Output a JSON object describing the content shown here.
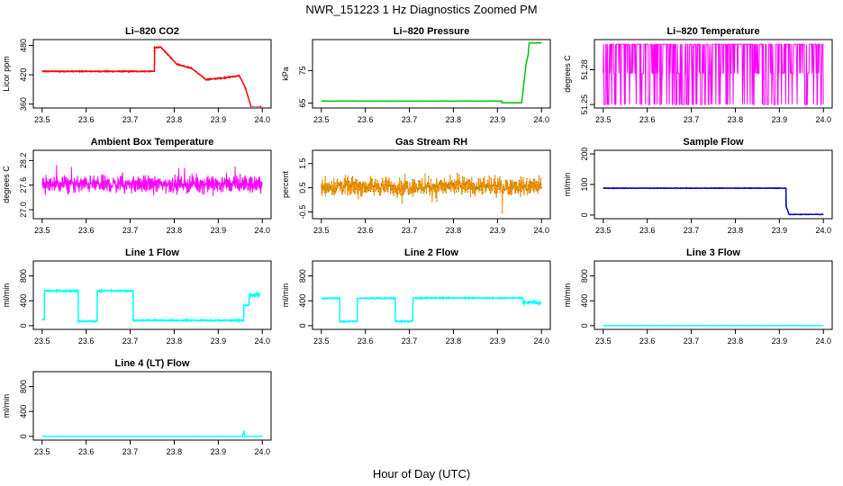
{
  "figure": {
    "title": "NWR_151223  1 Hz Diagnostics Zoomed PM",
    "xlabel": "Hour of Day (UTC)"
  },
  "chart_data": [
    {
      "type": "line",
      "title": "Li–820 CO2",
      "xlabel": "",
      "ylabel": "Licor ppm",
      "x_ticks": [
        "23.5",
        "23.6",
        "23.7",
        "23.8",
        "23.9",
        "24.0"
      ],
      "y_ticks": [
        "360",
        "420",
        "480"
      ],
      "xlim": [
        23.48,
        24.02
      ],
      "ylim": [
        352,
        492
      ],
      "color": "#ff0000",
      "kind": "step",
      "x": [
        23.5,
        23.755,
        23.755,
        23.77,
        23.77,
        23.806,
        23.806,
        23.84,
        23.84,
        23.872,
        23.872,
        23.915,
        23.915,
        23.948,
        23.948,
        23.962,
        23.975,
        24.0
      ],
      "y": [
        427,
        427,
        476,
        476,
        476,
        442,
        442,
        433,
        433,
        410,
        410,
        414,
        414,
        418,
        418,
        392,
        353,
        353
      ],
      "noise": 1.2
    },
    {
      "type": "line",
      "title": "Li–820 Pressure",
      "xlabel": "",
      "ylabel": "kPa",
      "x_ticks": [
        "23.5",
        "23.6",
        "23.7",
        "23.8",
        "23.9",
        "24.0"
      ],
      "y_ticks": [
        "65",
        "75"
      ],
      "xlim": [
        23.48,
        24.02
      ],
      "ylim": [
        63.5,
        84.5
      ],
      "color": "#00c000",
      "kind": "step",
      "x": [
        23.5,
        23.91,
        23.91,
        23.955,
        23.965,
        23.97,
        23.972,
        24.0
      ],
      "y": [
        65.6,
        65.6,
        65.1,
        65.1,
        77,
        80,
        83.5,
        83.5
      ],
      "noise": 0.05
    },
    {
      "type": "line",
      "title": "Li–820 Temperature",
      "xlabel": "",
      "ylabel": "degrees C",
      "x_ticks": [
        "23.5",
        "23.6",
        "23.7",
        "23.8",
        "23.9",
        "24.0"
      ],
      "y_ticks": [
        "51.25",
        "51.28"
      ],
      "xlim": [
        23.48,
        24.02
      ],
      "ylim": [
        51.247,
        51.306
      ],
      "color": "#ff00ff",
      "kind": "discrete",
      "levels": [
        51.25,
        51.277,
        51.302
      ],
      "x": [
        23.5,
        24.0
      ]
    },
    {
      "type": "line",
      "title": "Ambient Box Temperature",
      "xlabel": "",
      "ylabel": "degrees C",
      "x_ticks": [
        "23.5",
        "23.6",
        "23.7",
        "23.8",
        "23.9",
        "24.0"
      ],
      "y_ticks": [
        "27.0",
        "27.6",
        "28.2"
      ],
      "xlim": [
        23.48,
        24.02
      ],
      "ylim": [
        26.78,
        28.45
      ],
      "color": "#ff00ff",
      "kind": "noise",
      "x": [
        23.5,
        24.0
      ],
      "y_center": 27.62,
      "y_spread": 0.3
    },
    {
      "type": "scatter",
      "title": "Gas Stream RH",
      "xlabel": "",
      "ylabel": "percent",
      "x_ticks": [
        "23.5",
        "23.6",
        "23.7",
        "23.8",
        "23.9",
        "24.0"
      ],
      "y_ticks": [
        "-0.5",
        "0.5",
        "1.5"
      ],
      "xlim": [
        23.48,
        24.02
      ],
      "ylim": [
        -0.78,
        2.05
      ],
      "color": "#ff8c00",
      "color2": "#8b8b00",
      "kind": "noise",
      "x": [
        23.5,
        24.0
      ],
      "y_center": 0.55,
      "y_spread": 0.55
    },
    {
      "type": "line",
      "title": "Sample Flow",
      "xlabel": "",
      "ylabel": "ml/min",
      "x_ticks": [
        "23.5",
        "23.6",
        "23.7",
        "23.8",
        "23.9",
        "24.0"
      ],
      "y_ticks": [
        "0",
        "100",
        "200"
      ],
      "xlim": [
        23.48,
        24.02
      ],
      "ylim": [
        -12,
        212
      ],
      "color": "#0000c0",
      "kind": "step",
      "x": [
        23.5,
        23.915,
        23.915,
        23.922,
        24.0
      ],
      "y": [
        88,
        88,
        30,
        2,
        2
      ],
      "noise": 1.0
    },
    {
      "type": "line",
      "title": "Line 1 Flow",
      "xlabel": "",
      "ylabel": "ml/min",
      "x_ticks": [
        "23.5",
        "23.6",
        "23.7",
        "23.8",
        "23.9",
        "24.0"
      ],
      "y_ticks": [
        "0",
        "400",
        "800"
      ],
      "xlim": [
        23.48,
        24.02
      ],
      "ylim": [
        -60,
        1040
      ],
      "color": "#00ffff",
      "kind": "step",
      "x": [
        23.5,
        23.505,
        23.505,
        23.582,
        23.582,
        23.625,
        23.625,
        23.707,
        23.707,
        23.958,
        23.958,
        23.97,
        23.97,
        23.995
      ],
      "y": [
        100,
        100,
        560,
        560,
        70,
        70,
        560,
        560,
        85,
        85,
        330,
        330,
        490,
        490
      ],
      "noise": 12,
      "heavy_noise_from": 23.97
    },
    {
      "type": "line",
      "title": "Line 2 Flow",
      "xlabel": "",
      "ylabel": "ml/min",
      "x_ticks": [
        "23.5",
        "23.6",
        "23.7",
        "23.8",
        "23.9",
        "24.0"
      ],
      "y_ticks": [
        "0",
        "400",
        "800"
      ],
      "xlim": [
        23.48,
        24.02
      ],
      "ylim": [
        -60,
        1040
      ],
      "color": "#00ffff",
      "kind": "step",
      "x": [
        23.5,
        23.542,
        23.542,
        23.582,
        23.582,
        23.668,
        23.668,
        23.708,
        23.708,
        23.958,
        23.958,
        23.998
      ],
      "y": [
        440,
        440,
        70,
        70,
        440,
        440,
        70,
        70,
        445,
        445,
        370,
        370
      ],
      "noise": 10,
      "heavy_noise_from": 23.958
    },
    {
      "type": "line",
      "title": "Line 3 Flow",
      "xlabel": "",
      "ylabel": "ml/min",
      "x_ticks": [
        "23.5",
        "23.6",
        "23.7",
        "23.8",
        "23.9",
        "24.0"
      ],
      "y_ticks": [
        "0",
        "400",
        "800"
      ],
      "xlim": [
        23.48,
        24.02
      ],
      "ylim": [
        -60,
        1040
      ],
      "color": "#00ffff",
      "kind": "step",
      "x": [
        23.5,
        24.0
      ],
      "y": [
        0,
        0
      ],
      "noise": 2
    },
    {
      "type": "line",
      "title": "Line 4 (LT) Flow",
      "xlabel": "",
      "ylabel": "ml/min",
      "x_ticks": [
        "23.5",
        "23.6",
        "23.7",
        "23.8",
        "23.9",
        "24.0"
      ],
      "y_ticks": [
        "0",
        "400",
        "800"
      ],
      "xlim": [
        23.48,
        24.02
      ],
      "ylim": [
        -60,
        1040
      ],
      "color": "#00ffff",
      "kind": "step",
      "x": [
        23.5,
        23.955,
        23.957,
        23.958,
        23.96,
        24.0
      ],
      "y": [
        0,
        0,
        50,
        90,
        0,
        0
      ],
      "noise": 2
    }
  ]
}
